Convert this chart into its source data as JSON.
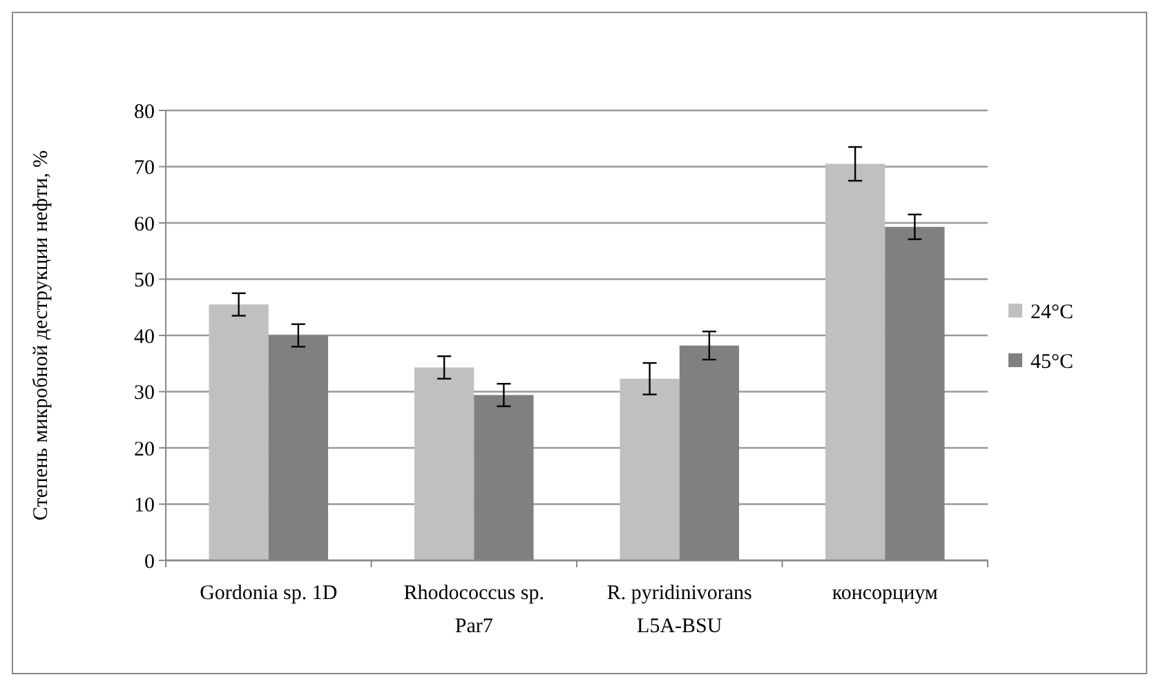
{
  "chart_data": {
    "type": "bar",
    "ylabel": "Степень микробной деструкции нефти, %",
    "categories": [
      "Gordonia sp. 1D",
      "Rhodococcus sp. Par7",
      "R. pyridinivorans L5A-BSU",
      "консорциум"
    ],
    "series": [
      {
        "name": "24°C",
        "color": "#c0c0c0",
        "values": [
          45.5,
          34.3,
          32.3,
          70.5
        ],
        "errors": [
          2,
          2,
          2.8,
          3
        ]
      },
      {
        "name": "45°C",
        "color": "#808080",
        "values": [
          40,
          29.4,
          38.2,
          59.3
        ],
        "errors": [
          2,
          2,
          2.5,
          2.2
        ]
      }
    ],
    "ylim": [
      0,
      80
    ],
    "yticks": [
      0,
      10,
      20,
      30,
      40,
      50,
      60,
      70,
      80
    ],
    "grid": "y",
    "legend": "right"
  }
}
